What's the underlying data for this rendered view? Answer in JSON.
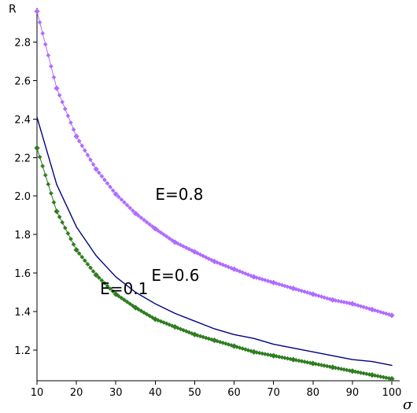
{
  "chart_data": {
    "type": "line",
    "xlabel": "σ",
    "ylabel": "R",
    "xlim": [
      10,
      100
    ],
    "ylim": [
      1.04,
      2.97
    ],
    "x_ticks": [
      10,
      20,
      30,
      40,
      50,
      60,
      70,
      80,
      90,
      100
    ],
    "y_ticks": [
      1.2,
      1.4,
      1.6,
      1.8,
      2.0,
      2.2,
      2.4,
      2.6,
      2.8
    ],
    "x_tick_labels": [
      "10",
      "20",
      "30",
      "40",
      "50",
      "60",
      "70",
      "80",
      "90",
      "100"
    ],
    "y_tick_labels": [
      "1.2",
      "1.4",
      "1.6",
      "1.8",
      "2.0",
      "2.2",
      "2.4",
      "2.6",
      "2.8"
    ],
    "grid": false,
    "series": [
      {
        "name": "E=0.8",
        "color": "#b06cff",
        "style": "diamond-markers",
        "x": [
          10,
          15,
          20,
          25,
          30,
          35,
          40,
          45,
          50,
          55,
          60,
          65,
          70,
          75,
          80,
          85,
          90,
          95,
          100
        ],
        "y": [
          2.96,
          2.56,
          2.31,
          2.14,
          2.01,
          1.91,
          1.83,
          1.76,
          1.71,
          1.66,
          1.62,
          1.58,
          1.55,
          1.52,
          1.49,
          1.46,
          1.44,
          1.41,
          1.38
        ]
      },
      {
        "name": "E=0.6",
        "color": "#000080",
        "style": "solid-line",
        "x": [
          10,
          15,
          20,
          25,
          30,
          35,
          40,
          45,
          50,
          55,
          60,
          65,
          70,
          75,
          80,
          85,
          90,
          95,
          100
        ],
        "y": [
          2.41,
          2.06,
          1.84,
          1.69,
          1.58,
          1.5,
          1.44,
          1.39,
          1.35,
          1.31,
          1.28,
          1.26,
          1.23,
          1.21,
          1.19,
          1.17,
          1.15,
          1.14,
          1.12
        ]
      },
      {
        "name": "E=0.1",
        "color": "#2e7d1f",
        "style": "diamond-markers",
        "x": [
          10,
          15,
          20,
          25,
          30,
          35,
          40,
          45,
          50,
          55,
          60,
          65,
          70,
          75,
          80,
          85,
          90,
          95,
          100
        ],
        "y": [
          2.25,
          1.92,
          1.72,
          1.59,
          1.49,
          1.42,
          1.36,
          1.32,
          1.28,
          1.25,
          1.22,
          1.19,
          1.17,
          1.15,
          1.13,
          1.11,
          1.09,
          1.07,
          1.05
        ]
      }
    ],
    "annotations": [
      {
        "text": "E=0.8",
        "x": 40,
        "y": 1.98
      },
      {
        "text": "E=0.6",
        "x": 39,
        "y": 1.56
      },
      {
        "text": "E=0.1",
        "x": 26,
        "y": 1.49
      }
    ]
  }
}
